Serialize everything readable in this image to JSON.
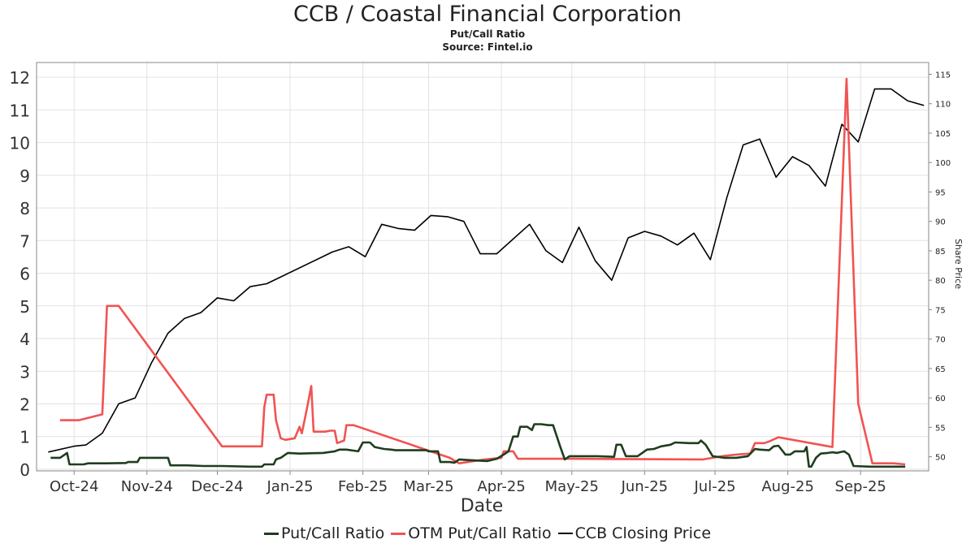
{
  "title": "CCB / Coastal Financial Corporation",
  "subtitle": "Put/Call Ratio",
  "source": "Source: Fintel.io",
  "chart_data": {
    "type": "line",
    "xlabel": "Date",
    "ylabel": "",
    "y2label": "Share Price",
    "xlim": [
      "2024-09-15",
      "2025-09-30"
    ],
    "ylim": [
      -0.05,
      12.45
    ],
    "y2lim": [
      47.6,
      117.0
    ],
    "grid": true,
    "legend_position": "bottom",
    "x_tick_labels": [
      {
        "date": "2024-10-01",
        "label": "Oct-24"
      },
      {
        "date": "2024-11-01",
        "label": "Nov-24"
      },
      {
        "date": "2024-12-01",
        "label": "Dec-24"
      },
      {
        "date": "2025-01-01",
        "label": "Jan-25"
      },
      {
        "date": "2025-02-01",
        "label": "Feb-25"
      },
      {
        "date": "2025-03-01",
        "label": "Mar-25"
      },
      {
        "date": "2025-04-01",
        "label": "Apr-25"
      },
      {
        "date": "2025-05-01",
        "label": "May-25"
      },
      {
        "date": "2025-06-01",
        "label": "Jun-25"
      },
      {
        "date": "2025-07-01",
        "label": "Jul-25"
      },
      {
        "date": "2025-08-01",
        "label": "Aug-25"
      },
      {
        "date": "2025-09-01",
        "label": "Sep-25"
      }
    ],
    "y_ticks": [
      0,
      1,
      2,
      3,
      4,
      5,
      6,
      7,
      8,
      9,
      10,
      11,
      12
    ],
    "y2_ticks": [
      50,
      55,
      60,
      65,
      70,
      75,
      80,
      85,
      90,
      95,
      100,
      105,
      110,
      115
    ],
    "series": [
      {
        "name": "Put/Call Ratio",
        "axis": "left",
        "color": "#1f3d1f",
        "points": [
          [
            "2024-09-21",
            0.35
          ],
          [
            "2024-09-25",
            0.35
          ],
          [
            "2024-09-27",
            0.45
          ],
          [
            "2024-09-28",
            0.5
          ],
          [
            "2024-09-29",
            0.15
          ],
          [
            "2024-10-05",
            0.15
          ],
          [
            "2024-10-07",
            0.18
          ],
          [
            "2024-10-15",
            0.18
          ],
          [
            "2024-10-23",
            0.19
          ],
          [
            "2024-10-24",
            0.22
          ],
          [
            "2024-10-28",
            0.22
          ],
          [
            "2024-10-29",
            0.35
          ],
          [
            "2024-11-02",
            0.35
          ],
          [
            "2024-11-04",
            0.35
          ],
          [
            "2024-11-10",
            0.35
          ],
          [
            "2024-11-11",
            0.12
          ],
          [
            "2024-11-18",
            0.12
          ],
          [
            "2024-11-25",
            0.1
          ],
          [
            "2024-12-03",
            0.1
          ],
          [
            "2024-12-15",
            0.08
          ],
          [
            "2024-12-20",
            0.08
          ],
          [
            "2024-12-21",
            0.15
          ],
          [
            "2024-12-25",
            0.15
          ],
          [
            "2024-12-26",
            0.3
          ],
          [
            "2024-12-28",
            0.35
          ],
          [
            "2024-12-31",
            0.5
          ],
          [
            "2025-01-05",
            0.48
          ],
          [
            "2025-01-15",
            0.5
          ],
          [
            "2025-01-20",
            0.55
          ],
          [
            "2025-01-22",
            0.6
          ],
          [
            "2025-01-25",
            0.6
          ],
          [
            "2025-01-30",
            0.55
          ],
          [
            "2025-02-01",
            0.82
          ],
          [
            "2025-02-04",
            0.82
          ],
          [
            "2025-02-06",
            0.68
          ],
          [
            "2025-02-10",
            0.62
          ],
          [
            "2025-02-13",
            0.6
          ],
          [
            "2025-02-15",
            0.58
          ],
          [
            "2025-02-28",
            0.58
          ],
          [
            "2025-03-01",
            0.55
          ],
          [
            "2025-03-05",
            0.55
          ],
          [
            "2025-03-06",
            0.22
          ],
          [
            "2025-03-10",
            0.22
          ],
          [
            "2025-03-12",
            0.2
          ],
          [
            "2025-03-14",
            0.3
          ],
          [
            "2025-03-18",
            0.28
          ],
          [
            "2025-03-26",
            0.25
          ],
          [
            "2025-03-30",
            0.32
          ],
          [
            "2025-04-02",
            0.45
          ],
          [
            "2025-04-04",
            0.55
          ],
          [
            "2025-04-06",
            1.0
          ],
          [
            "2025-04-08",
            1.0
          ],
          [
            "2025-04-09",
            1.3
          ],
          [
            "2025-04-12",
            1.3
          ],
          [
            "2025-04-14",
            1.2
          ],
          [
            "2025-04-15",
            1.38
          ],
          [
            "2025-04-18",
            1.38
          ],
          [
            "2025-04-21",
            1.35
          ],
          [
            "2025-04-23",
            1.35
          ],
          [
            "2025-04-26",
            0.7
          ],
          [
            "2025-04-28",
            0.3
          ],
          [
            "2025-04-30",
            0.4
          ],
          [
            "2025-05-05",
            0.4
          ],
          [
            "2025-05-12",
            0.4
          ],
          [
            "2025-05-19",
            0.38
          ],
          [
            "2025-05-20",
            0.75
          ],
          [
            "2025-05-22",
            0.75
          ],
          [
            "2025-05-24",
            0.4
          ],
          [
            "2025-05-29",
            0.4
          ],
          [
            "2025-06-02",
            0.6
          ],
          [
            "2025-06-05",
            0.62
          ],
          [
            "2025-06-08",
            0.7
          ],
          [
            "2025-06-12",
            0.75
          ],
          [
            "2025-06-14",
            0.82
          ],
          [
            "2025-06-20",
            0.8
          ],
          [
            "2025-06-24",
            0.8
          ],
          [
            "2025-06-25",
            0.88
          ],
          [
            "2025-06-27",
            0.75
          ],
          [
            "2025-06-30",
            0.4
          ],
          [
            "2025-07-05",
            0.35
          ],
          [
            "2025-07-10",
            0.35
          ],
          [
            "2025-07-15",
            0.4
          ],
          [
            "2025-07-18",
            0.62
          ],
          [
            "2025-07-20",
            0.6
          ],
          [
            "2025-07-24",
            0.58
          ],
          [
            "2025-07-26",
            0.7
          ],
          [
            "2025-07-28",
            0.72
          ],
          [
            "2025-07-31",
            0.45
          ],
          [
            "2025-08-02",
            0.45
          ],
          [
            "2025-08-04",
            0.55
          ],
          [
            "2025-08-08",
            0.55
          ],
          [
            "2025-08-09",
            0.68
          ],
          [
            "2025-08-10",
            0.08
          ],
          [
            "2025-08-11",
            0.08
          ],
          [
            "2025-08-13",
            0.35
          ],
          [
            "2025-08-15",
            0.48
          ],
          [
            "2025-08-18",
            0.5
          ],
          [
            "2025-08-20",
            0.52
          ],
          [
            "2025-08-22",
            0.5
          ],
          [
            "2025-08-23",
            0.52
          ],
          [
            "2025-08-25",
            0.55
          ],
          [
            "2025-08-27",
            0.45
          ],
          [
            "2025-08-29",
            0.1
          ],
          [
            "2025-09-05",
            0.08
          ],
          [
            "2025-09-20",
            0.08
          ]
        ]
      },
      {
        "name": "OTM Put/Call Ratio",
        "axis": "left",
        "color": "#f15353",
        "points": [
          [
            "2024-09-25",
            1.5
          ],
          [
            "2024-10-03",
            1.5
          ],
          [
            "2024-10-13",
            1.68
          ],
          [
            "2024-10-15",
            5.0
          ],
          [
            "2024-10-20",
            5.0
          ],
          [
            "2024-12-03",
            0.7
          ],
          [
            "2024-12-12",
            0.7
          ],
          [
            "2024-12-20",
            0.7
          ],
          [
            "2024-12-21",
            1.9
          ],
          [
            "2024-12-22",
            2.28
          ],
          [
            "2024-12-25",
            2.28
          ],
          [
            "2024-12-26",
            1.5
          ],
          [
            "2024-12-28",
            0.95
          ],
          [
            "2024-12-30",
            0.9
          ],
          [
            "2025-01-03",
            0.95
          ],
          [
            "2025-01-05",
            1.3
          ],
          [
            "2025-01-06",
            1.1
          ],
          [
            "2025-01-08",
            1.8
          ],
          [
            "2025-01-10",
            2.55
          ],
          [
            "2025-01-11",
            1.15
          ],
          [
            "2025-01-16",
            1.15
          ],
          [
            "2025-01-18",
            1.18
          ],
          [
            "2025-01-20",
            1.18
          ],
          [
            "2025-01-21",
            0.8
          ],
          [
            "2025-01-24",
            0.88
          ],
          [
            "2025-01-25",
            1.35
          ],
          [
            "2025-01-28",
            1.35
          ],
          [
            "2025-03-10",
            0.35
          ],
          [
            "2025-03-14",
            0.18
          ],
          [
            "2025-03-25",
            0.3
          ],
          [
            "2025-04-01",
            0.35
          ],
          [
            "2025-04-02",
            0.55
          ],
          [
            "2025-04-06",
            0.55
          ],
          [
            "2025-04-08",
            0.32
          ],
          [
            "2025-05-01",
            0.32
          ],
          [
            "2025-06-26",
            0.3
          ],
          [
            "2025-07-04",
            0.4
          ],
          [
            "2025-07-10",
            0.45
          ],
          [
            "2025-07-16",
            0.48
          ],
          [
            "2025-07-18",
            0.8
          ],
          [
            "2025-07-22",
            0.8
          ],
          [
            "2025-07-24",
            0.85
          ],
          [
            "2025-07-28",
            0.98
          ],
          [
            "2025-08-20",
            0.68
          ],
          [
            "2025-08-26",
            11.95
          ],
          [
            "2025-08-31",
            2.0
          ],
          [
            "2025-09-06",
            0.18
          ],
          [
            "2025-09-15",
            0.18
          ],
          [
            "2025-09-20",
            0.15
          ]
        ]
      },
      {
        "name": "CCB Closing Price",
        "axis": "right",
        "color": "#000000",
        "points": [
          [
            "2024-09-20",
            50.8
          ],
          [
            "2024-10-01",
            51.8
          ],
          [
            "2024-10-06",
            52.0
          ],
          [
            "2024-10-13",
            54.0
          ],
          [
            "2024-10-20",
            59.0
          ],
          [
            "2024-10-27",
            60.0
          ],
          [
            "2024-11-03",
            66.0
          ],
          [
            "2024-11-10",
            71.0
          ],
          [
            "2024-11-17",
            73.5
          ],
          [
            "2024-11-24",
            74.5
          ],
          [
            "2024-12-01",
            77.0
          ],
          [
            "2024-12-08",
            76.5
          ],
          [
            "2024-12-15",
            78.9
          ],
          [
            "2024-12-22",
            79.4
          ],
          [
            "2025-01-19",
            84.8
          ],
          [
            "2025-01-26",
            85.7
          ],
          [
            "2025-02-02",
            84.0
          ],
          [
            "2025-02-09",
            89.5
          ],
          [
            "2025-02-16",
            88.8
          ],
          [
            "2025-02-23",
            88.5
          ],
          [
            "2025-03-02",
            91.0
          ],
          [
            "2025-03-09",
            90.8
          ],
          [
            "2025-03-16",
            90.0
          ],
          [
            "2025-03-23",
            84.5
          ],
          [
            "2025-03-30",
            84.5
          ],
          [
            "2025-04-13",
            89.5
          ],
          [
            "2025-04-20",
            85.0
          ],
          [
            "2025-04-27",
            83.0
          ],
          [
            "2025-05-04",
            89.0
          ],
          [
            "2025-05-11",
            83.3
          ],
          [
            "2025-05-18",
            80.0
          ],
          [
            "2025-05-25",
            87.2
          ],
          [
            "2025-06-01",
            88.3
          ],
          [
            "2025-06-08",
            87.5
          ],
          [
            "2025-06-15",
            86.0
          ],
          [
            "2025-06-22",
            88.0
          ],
          [
            "2025-06-29",
            83.5
          ],
          [
            "2025-07-06",
            94.0
          ],
          [
            "2025-07-13",
            103.0
          ],
          [
            "2025-07-20",
            104.0
          ],
          [
            "2025-07-27",
            97.5
          ],
          [
            "2025-08-03",
            101.0
          ],
          [
            "2025-08-10",
            99.5
          ],
          [
            "2025-08-17",
            96.0
          ],
          [
            "2025-08-24",
            106.5
          ],
          [
            "2025-08-31",
            103.5
          ],
          [
            "2025-09-07",
            112.5
          ],
          [
            "2025-09-14",
            112.5
          ],
          [
            "2025-09-21",
            110.5
          ],
          [
            "2025-09-28",
            109.7
          ]
        ]
      }
    ]
  }
}
